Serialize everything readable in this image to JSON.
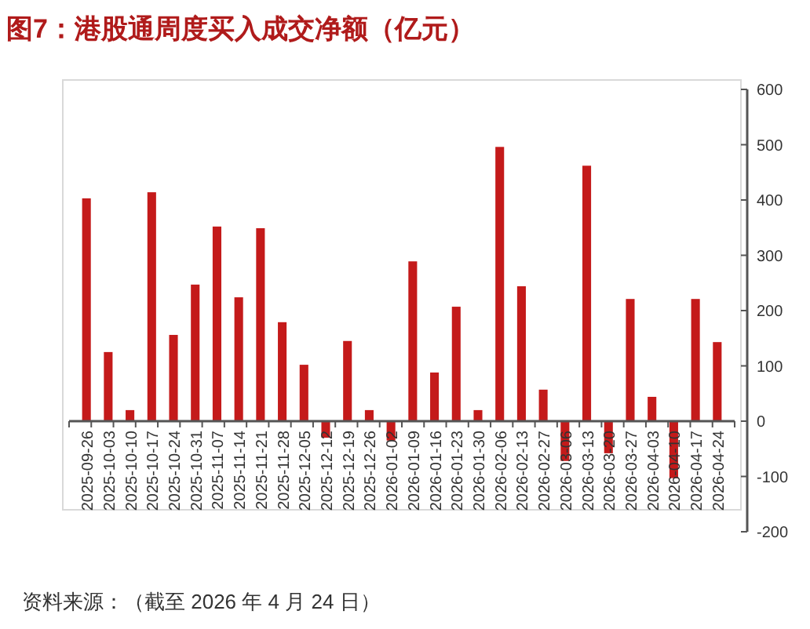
{
  "chart_data": {
    "type": "bar",
    "title": "图7：港股通周度买入成交净额（亿元）",
    "categories": [
      "2025-09-26",
      "2025-10-03",
      "2025-10-10",
      "2025-10-17",
      "2025-10-24",
      "2025-10-31",
      "2025-11-07",
      "2025-11-14",
      "2025-11-21",
      "2025-11-28",
      "2025-12-05",
      "2025-12-12",
      "2025-12-19",
      "2025-12-26",
      "2026-01-02",
      "2026-01-09",
      "2026-01-16",
      "2026-01-23",
      "2026-01-30",
      "2026-02-06",
      "2026-02-13",
      "2026-02-27",
      "2026-03-06",
      "2026-03-13",
      "2026-03-20",
      "2026-03-27",
      "2026-04-03",
      "2026-04-10",
      "2026-04-17",
      "2026-04-24"
    ],
    "values": [
      403,
      125,
      20,
      414,
      156,
      247,
      352,
      224,
      349,
      179,
      102,
      -30,
      145,
      20,
      -35,
      289,
      88,
      207,
      20,
      496,
      244,
      57,
      -72,
      462,
      -58,
      221,
      44,
      -103,
      221,
      143
    ],
    "color": "#c41a1a",
    "ylim": [
      -200,
      600
    ],
    "yticks": [
      -200,
      -100,
      0,
      100,
      200,
      300,
      400,
      500,
      600
    ],
    "annotations": [
      "资料来源：（截至 2026 年 4 月 24 日）"
    ]
  }
}
